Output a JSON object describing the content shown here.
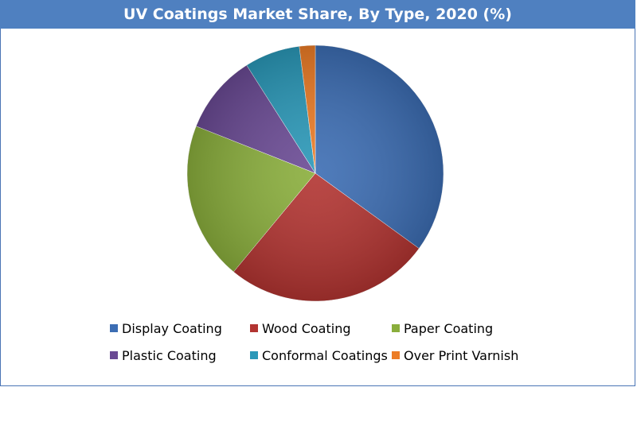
{
  "chart_data": {
    "type": "pie",
    "title": "UV Coatings Market Share, By Type, 2020 (%)",
    "slices": [
      {
        "label": "Display Coating",
        "value": 35,
        "color": "#3c6db3"
      },
      {
        "label": "Wood Coating",
        "value": 26,
        "color": "#b23431"
      },
      {
        "label": "Paper Coating",
        "value": 20,
        "color": "#8aae3c"
      },
      {
        "label": "Plastic Coating",
        "value": 10,
        "color": "#6a4a94"
      },
      {
        "label": "Conformal Coatings",
        "value": 7,
        "color": "#2a98b8"
      },
      {
        "label": "Over Print Varnish",
        "value": 2,
        "color": "#ec7c26"
      }
    ],
    "legend_position": "bottom"
  }
}
